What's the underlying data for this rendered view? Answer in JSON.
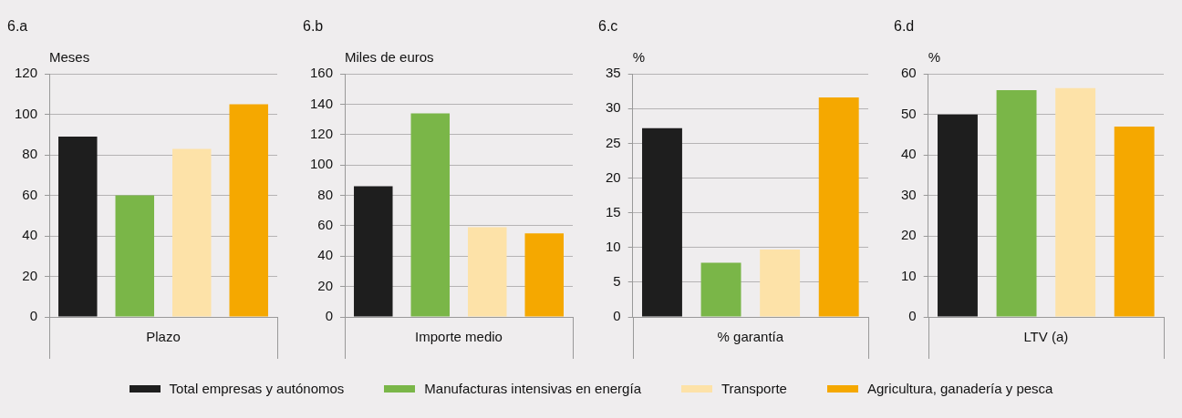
{
  "chart_data": [
    {
      "type": "bar",
      "title": "6.a",
      "ylabel": "Meses",
      "xlabel": "Plazo",
      "categories": [
        null,
        null,
        null,
        null
      ],
      "ylim": [
        0,
        120
      ],
      "yticks": [
        0,
        20,
        40,
        60,
        80,
        100,
        120
      ],
      "grid": "y",
      "legend": "bottom",
      "series": [
        {
          "name": "Total empresas y autónomos",
          "color": "#1e1e1e",
          "values": [
            89,
            null,
            null,
            null
          ]
        },
        {
          "name": "Manufacturas intensivas en energía",
          "color": "#7ab648",
          "values": [
            null,
            60,
            null,
            null
          ]
        },
        {
          "name": "Transporte",
          "color": "#fde2a8",
          "values": [
            null,
            null,
            83,
            null
          ]
        },
        {
          "name": "Agricultura, ganadería y pesca",
          "color": "#f5a800",
          "values": [
            null,
            null,
            null,
            105
          ]
        }
      ]
    },
    {
      "type": "bar",
      "title": "6.b",
      "ylabel": "Miles de euros",
      "xlabel": "Importe medio",
      "categories": [
        null,
        null,
        null,
        null
      ],
      "ylim": [
        0,
        160
      ],
      "yticks": [
        0,
        20,
        40,
        60,
        80,
        100,
        120,
        140,
        160
      ],
      "grid": "y",
      "series": [
        {
          "color": "#1e1e1e",
          "values": [
            86,
            null,
            null,
            null
          ]
        },
        {
          "color": "#7ab648",
          "values": [
            null,
            134,
            null,
            null
          ]
        },
        {
          "color": "#fde2a8",
          "values": [
            null,
            null,
            59,
            null
          ]
        },
        {
          "color": "#f5a800",
          "values": [
            null,
            null,
            null,
            55
          ]
        }
      ]
    },
    {
      "type": "bar",
      "title": "6.c",
      "ylabel": "%",
      "xlabel": "% garantía",
      "categories": [
        null,
        null,
        null,
        null
      ],
      "ylim": [
        0,
        35
      ],
      "yticks": [
        0,
        5,
        10,
        15,
        20,
        25,
        30,
        35
      ],
      "grid": "y",
      "series": [
        {
          "color": "#1e1e1e",
          "values": [
            27.2,
            null,
            null,
            null
          ]
        },
        {
          "color": "#7ab648",
          "values": [
            null,
            7.8,
            null,
            null
          ]
        },
        {
          "color": "#fde2a8",
          "values": [
            null,
            null,
            9.7,
            null
          ]
        },
        {
          "color": "#f5a800",
          "values": [
            null,
            null,
            null,
            31.6
          ]
        }
      ]
    },
    {
      "type": "bar",
      "title": "6.d",
      "ylabel": "%",
      "xlabel": "LTV (a)",
      "categories": [
        null,
        null,
        null,
        null
      ],
      "ylim": [
        0,
        60
      ],
      "yticks": [
        0,
        10,
        20,
        30,
        40,
        50,
        60
      ],
      "grid": "y",
      "series": [
        {
          "color": "#1e1e1e",
          "values": [
            50,
            null,
            null,
            null
          ]
        },
        {
          "color": "#7ab648",
          "values": [
            null,
            56,
            null,
            null
          ]
        },
        {
          "color": "#fde2a8",
          "values": [
            null,
            null,
            56.5,
            null
          ]
        },
        {
          "color": "#f5a800",
          "values": [
            null,
            null,
            null,
            47
          ]
        }
      ]
    }
  ]
}
